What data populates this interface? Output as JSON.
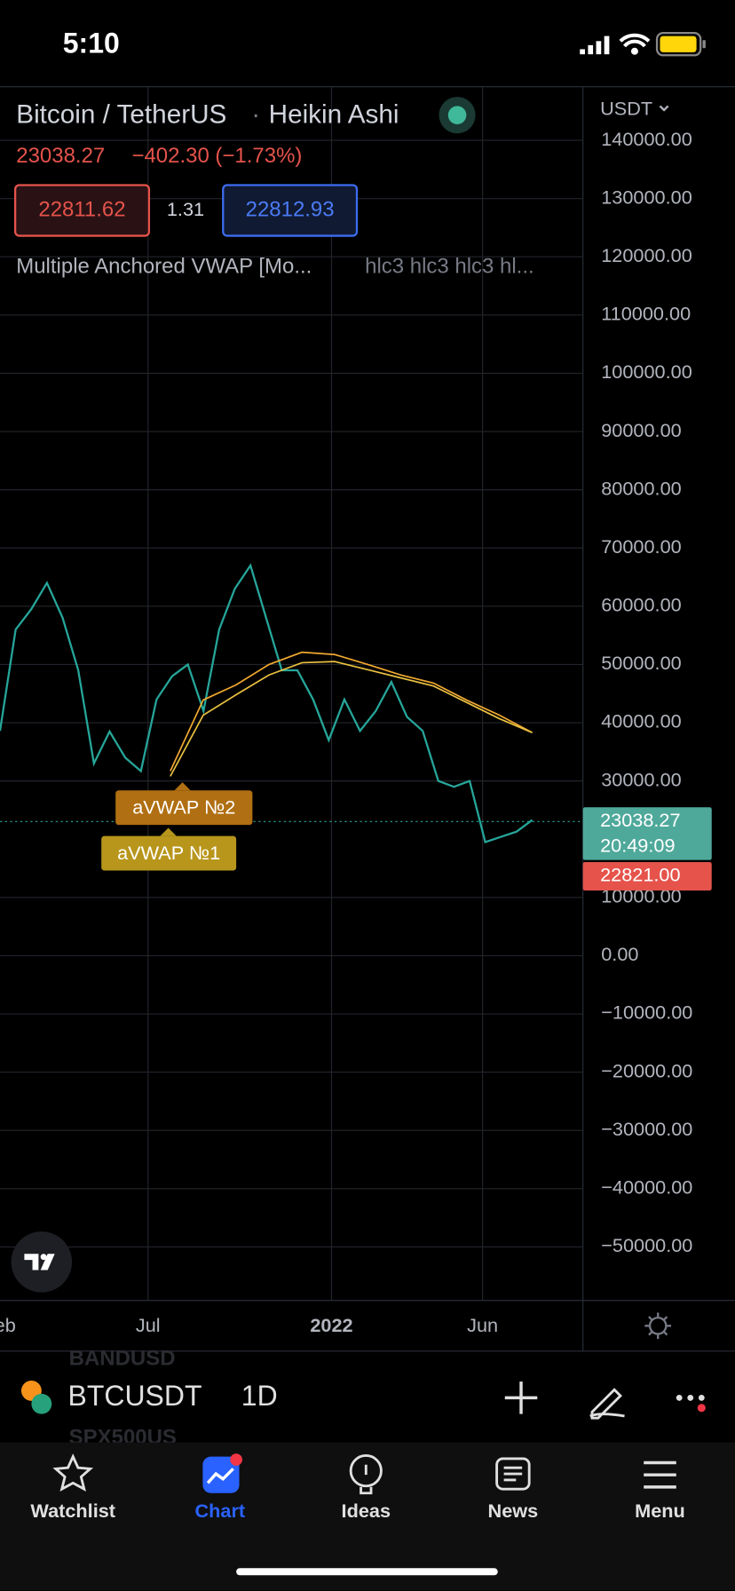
{
  "status_bar": {
    "time": "5:10"
  },
  "header": {
    "symbol_title": "Bitcoin / TetherUS",
    "separator": "·",
    "chart_style": "Heikin Ashi",
    "last_price": "23038.27",
    "change": "−402.30 (−1.73%)",
    "bid": "22811.62",
    "spread": "1.31",
    "ask": "22812.93",
    "indicator": "Multiple Anchored VWAP [Mo...",
    "indicator_inputs": "hlc3 hlc3 hlc3 hl..."
  },
  "chart": {
    "currency": "USDT",
    "ylim": [
      -59200,
      149200
    ],
    "yticks": [
      {
        "value": 140000,
        "label": "140000.00"
      },
      {
        "value": 130000,
        "label": "130000.00"
      },
      {
        "value": 120000,
        "label": "120000.00"
      },
      {
        "value": 110000,
        "label": "110000.00"
      },
      {
        "value": 100000,
        "label": "100000.00"
      },
      {
        "value": 90000,
        "label": "90000.00"
      },
      {
        "value": 80000,
        "label": "80000.00"
      },
      {
        "value": 70000,
        "label": "70000.00"
      },
      {
        "value": 60000,
        "label": "60000.00"
      },
      {
        "value": 50000,
        "label": "50000.00"
      },
      {
        "value": 40000,
        "label": "40000.00"
      },
      {
        "value": 30000,
        "label": "30000.00"
      },
      {
        "value": 10000,
        "label": "10000.00"
      },
      {
        "value": 0,
        "label": "0.00"
      },
      {
        "value": -10000,
        "label": "−10000.00"
      },
      {
        "value": -20000,
        "label": "−20000.00"
      },
      {
        "value": -30000,
        "label": "−30000.00"
      },
      {
        "value": -40000,
        "label": "−40000.00"
      },
      {
        "value": -50000,
        "label": "−50000.00"
      }
    ],
    "x_labels": [
      "eb",
      "Jul",
      "2022",
      "Jun"
    ],
    "price": {
      "color": "#26a69a",
      "values": [
        38600,
        56000,
        59500,
        64000,
        58000,
        49000,
        33000,
        38500,
        34000,
        31700,
        44000,
        48000,
        50000,
        42000,
        56000,
        63000,
        67000,
        58000,
        49000,
        49000,
        44000,
        37000,
        44000,
        38600,
        42000,
        47000,
        41000,
        38600,
        30000,
        29000,
        30000,
        19500,
        20400,
        21300,
        23300
      ]
    },
    "vwap_series": [
      {
        "name": "aVWAP №2",
        "color": "#f0a830",
        "values": [
          31700,
          43900,
          46500,
          50000,
          52100,
          51700,
          50000,
          48200,
          46800,
          43900,
          41300,
          38300
        ]
      },
      {
        "name": "aVWAP №1",
        "color": "#e8c040",
        "values": [
          30800,
          41300,
          44800,
          48200,
          50300,
          50500,
          49100,
          47700,
          46300,
          43500,
          40700,
          38300
        ]
      }
    ],
    "last_price_value": 23038.27,
    "countdown": "20:49:09",
    "low_tag": "22821.00"
  },
  "toolbar": {
    "symbol": "BTCUSDT",
    "interval": "1D",
    "ghost_above": "BANDUSD",
    "ghost_below": "SPX500US"
  },
  "tabs": [
    "Watchlist",
    "Chart",
    "Ideas",
    "News",
    "Menu"
  ]
}
